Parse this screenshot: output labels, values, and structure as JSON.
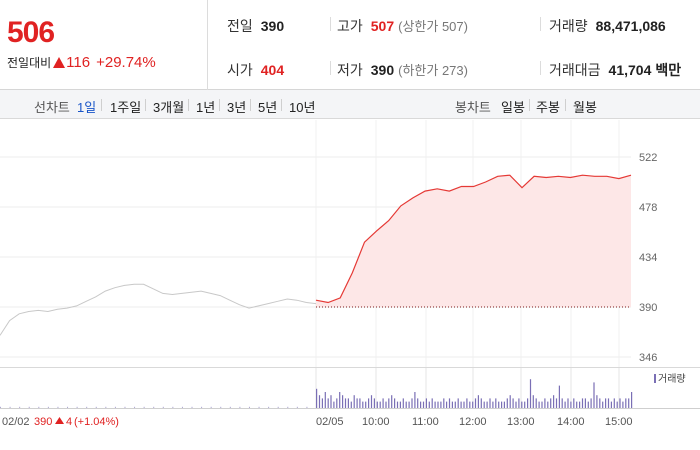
{
  "quote": {
    "price": "506",
    "change_label": "전일대비",
    "change_value": "116",
    "change_pct": "+29.74%",
    "stats": {
      "prev_close": {
        "label": "전일",
        "value": "390"
      },
      "open": {
        "label": "시가",
        "value": "404"
      },
      "high": {
        "label": "고가",
        "value": "507",
        "sub": "(상한가 507)"
      },
      "low": {
        "label": "저가",
        "value": "390",
        "sub": "(하한가 273)"
      },
      "volume": {
        "label": "거래량",
        "value": "88,471,086"
      },
      "amount": {
        "label": "거래대금",
        "value": "41,704",
        "unit": "백만"
      }
    }
  },
  "toolbar": {
    "line_chart_label": "선차트",
    "line_options": [
      "1일",
      "1주일",
      "3개월",
      "1년",
      "3년",
      "5년",
      "10년"
    ],
    "active_option": "1일",
    "candle_chart_label": "봉차트",
    "candle_options": [
      "일봉",
      "주봉",
      "월봉"
    ]
  },
  "colors": {
    "up": "#e02222",
    "line_today": "#e53935",
    "line_prev": "#c8c8c8",
    "fill_today": "#fde7e7",
    "volume_bar": "#7a6fb5",
    "active_tab": "#1a56c8"
  },
  "chart_data": {
    "type": "line",
    "ylim": [
      346,
      522
    ],
    "yticks": [
      "522",
      "478",
      "434",
      "390",
      "346"
    ],
    "xticks": [
      "02/05",
      "10:00",
      "11:00",
      "12:00",
      "13:00",
      "14:00",
      "15:00"
    ],
    "reference_value": 390,
    "prev_day": {
      "date_label": "02/02",
      "close_label": "390",
      "change_label": "4",
      "pct_label": "(+1.04%)",
      "values": [
        365,
        378,
        384,
        386,
        387,
        386,
        388,
        389,
        391,
        395,
        399,
        404,
        407,
        409,
        410,
        410,
        406,
        402,
        401,
        402,
        403,
        404,
        402,
        400,
        396,
        392,
        389,
        391,
        393,
        395,
        397,
        396,
        394,
        393
      ]
    },
    "today": {
      "times": [
        "09:00",
        "09:15",
        "09:30",
        "09:45",
        "10:00",
        "10:15",
        "10:30",
        "10:45",
        "11:00",
        "11:15",
        "11:30",
        "11:45",
        "12:00",
        "12:15",
        "12:30",
        "12:45",
        "13:00",
        "13:15",
        "13:30",
        "13:45",
        "14:00",
        "14:15",
        "14:30",
        "14:45",
        "15:00",
        "15:15",
        "15:20"
      ],
      "values": [
        396,
        394,
        398,
        420,
        447,
        457,
        466,
        479,
        486,
        492,
        494,
        492,
        496,
        496,
        500,
        505,
        506,
        495,
        505,
        504,
        505,
        504,
        506,
        505,
        505,
        503,
        506
      ]
    },
    "volume_legend": "거래량",
    "volume_prev": [
      1,
      1,
      1,
      1,
      1,
      1,
      1,
      1,
      1,
      1,
      1,
      1,
      1,
      1,
      1,
      1,
      1,
      1,
      1,
      1,
      1,
      1,
      1,
      1,
      1,
      1,
      1,
      1,
      1,
      1,
      1,
      1,
      1,
      1
    ],
    "volume_today": [
      6,
      4,
      3,
      5,
      3,
      4,
      2,
      3,
      5,
      4,
      3,
      3,
      2,
      4,
      3,
      3,
      2,
      2,
      3,
      4,
      3,
      2,
      2,
      3,
      2,
      3,
      4,
      3,
      2,
      2,
      3,
      2,
      2,
      3,
      5,
      3,
      2,
      2,
      3,
      2,
      3,
      2,
      2,
      2,
      3,
      2,
      3,
      2,
      2,
      3,
      2,
      2,
      3,
      2,
      2,
      3,
      4,
      3,
      2,
      2,
      3,
      2,
      3,
      2,
      2,
      2,
      3,
      4,
      3,
      2,
      3,
      2,
      2,
      3,
      9,
      4,
      3,
      2,
      2,
      3,
      2,
      3,
      4,
      3,
      7,
      3,
      2,
      3,
      2,
      3,
      2,
      2,
      3,
      3,
      2,
      3,
      8,
      4,
      3,
      2,
      3,
      3,
      2,
      3,
      2,
      3,
      2,
      3,
      3,
      5
    ]
  }
}
